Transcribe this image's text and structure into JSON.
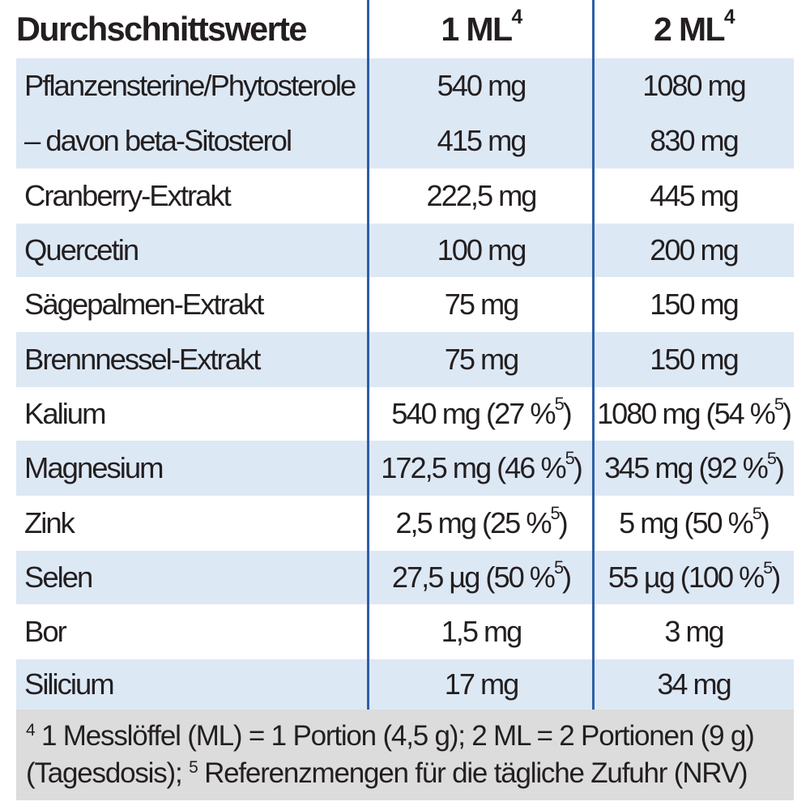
{
  "header": {
    "col1": "Durchschnittswerte",
    "col2_main": "1 ML",
    "col2_sup": "4",
    "col3_main": "2 ML",
    "col3_sup": "4"
  },
  "rows": [
    {
      "name": "Pflanzensterine/Phytosterole",
      "v1": "540 mg",
      "v1_sup": "",
      "v1_end": "",
      "v2": "1080 mg",
      "v2_sup": "",
      "v2_end": ""
    },
    {
      "name": "– davon beta-Sitosterol",
      "v1": "415 mg",
      "v1_sup": "",
      "v1_end": "",
      "v2": "830 mg",
      "v2_sup": "",
      "v2_end": ""
    },
    {
      "name": "Cranberry-Extrakt",
      "v1": "222,5 mg",
      "v1_sup": "",
      "v1_end": "",
      "v2": "445 mg",
      "v2_sup": "",
      "v2_end": ""
    },
    {
      "name": "Quercetin",
      "v1": "100 mg",
      "v1_sup": "",
      "v1_end": "",
      "v2": "200 mg",
      "v2_sup": "",
      "v2_end": ""
    },
    {
      "name": "Sägepalmen-Extrakt",
      "v1": "75 mg",
      "v1_sup": "",
      "v1_end": "",
      "v2": "150 mg",
      "v2_sup": "",
      "v2_end": ""
    },
    {
      "name": "Brennnessel-Extrakt",
      "v1": "75 mg",
      "v1_sup": "",
      "v1_end": "",
      "v2": "150 mg",
      "v2_sup": "",
      "v2_end": ""
    },
    {
      "name": "Kalium",
      "v1": "540 mg (27 %",
      "v1_sup": "5",
      "v1_end": ")",
      "v2": "1080 mg (54 %",
      "v2_sup": "5",
      "v2_end": ")"
    },
    {
      "name": "Magnesium",
      "v1": "172,5 mg (46 %",
      "v1_sup": "5",
      "v1_end": ")",
      "v2": "345 mg (92 %",
      "v2_sup": "5",
      "v2_end": ")"
    },
    {
      "name": "Zink",
      "v1": "2,5 mg (25 %",
      "v1_sup": "5",
      "v1_end": ")",
      "v2": "5 mg (50 %",
      "v2_sup": "5",
      "v2_end": ")"
    },
    {
      "name": "Selen",
      "v1": "27,5 µg (50 %",
      "v1_sup": "5",
      "v1_end": ")",
      "v2": "55 µg (100 %",
      "v2_sup": "5",
      "v2_end": ")"
    },
    {
      "name": "Bor",
      "v1": "1,5 mg",
      "v1_sup": "",
      "v1_end": "",
      "v2": "3 mg",
      "v2_sup": "",
      "v2_end": ""
    },
    {
      "name": "Silicium",
      "v1": "17 mg",
      "v1_sup": "",
      "v1_end": "",
      "v2": "34 mg",
      "v2_sup": "",
      "v2_end": ""
    }
  ],
  "footnote": {
    "sup4": "4",
    "part1": " 1 Messlöffel (ML) = 1 Portion (4,5 g); 2 ML = 2 Portionen (9 g) (Tagesdosis); ",
    "sup5": "5",
    "part2": " Referenzmengen für die tägliche Zufuhr (NRV)"
  },
  "colors": {
    "row_shade": "#dde8f5",
    "divider": "#2e5fa7",
    "footnote_bg": "#dcdcdc",
    "text": "#231f20"
  }
}
